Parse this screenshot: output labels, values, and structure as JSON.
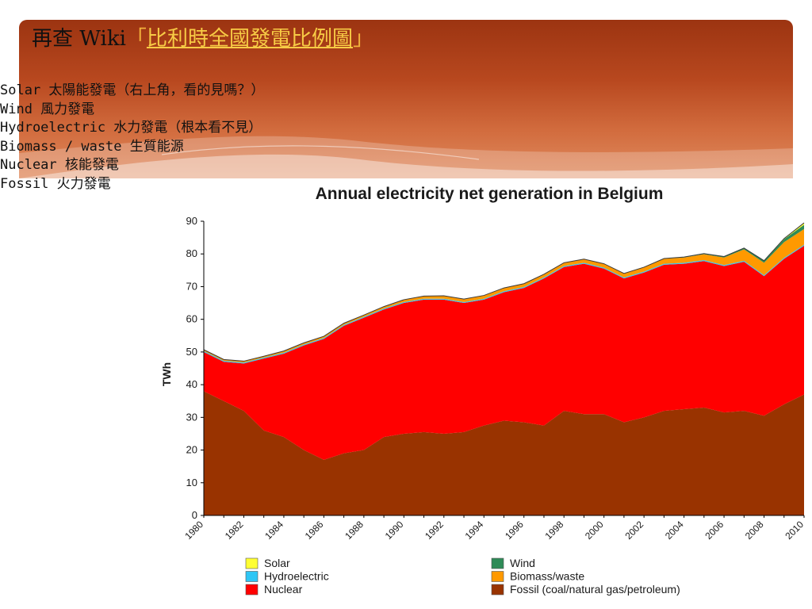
{
  "slide": {
    "title_prefix": "再查 Wiki",
    "bracket_open": "「",
    "link_text": "比利時全國發電比例圖",
    "bracket_close": "」",
    "lines": [
      "Solar 太陽能發電（右上角，看的見嗎？）",
      "Wind 風力發電",
      "Hydroelectric 水力發電（根本看不見）",
      "Biomass / waste 生質能源",
      "Nuclear 核能發電",
      "Fossil 火力發電"
    ]
  },
  "colors": {
    "banner": "#b8481f",
    "link": "#f7cb45",
    "solar": "#ffff33",
    "hydroelectric": "#2ec6f5",
    "nuclear": "#ff0000",
    "wind": "#2e8b57",
    "biomass": "#ff9900",
    "fossil": "#993300"
  },
  "chart_data": {
    "type": "area",
    "stacked": true,
    "title": "Annual electricity net generation in Belgium",
    "ylabel": "TWh",
    "xlabel": "",
    "ylim": [
      0,
      90
    ],
    "yticks": [
      0,
      10,
      20,
      30,
      40,
      50,
      60,
      70,
      80,
      90
    ],
    "xlim": [
      1980,
      2010
    ],
    "x": [
      1980,
      1981,
      1982,
      1983,
      1984,
      1985,
      1986,
      1987,
      1988,
      1989,
      1990,
      1991,
      1992,
      1993,
      1994,
      1995,
      1996,
      1997,
      1998,
      1999,
      2000,
      2001,
      2002,
      2003,
      2004,
      2005,
      2006,
      2007,
      2008,
      2009,
      2010
    ],
    "xtick_labels": [
      "1980",
      "1982",
      "1984",
      "1986",
      "1988",
      "1990",
      "1992",
      "1994",
      "1996",
      "1998",
      "2000",
      "2002",
      "2004",
      "2006",
      "2008",
      "2010"
    ],
    "series": [
      {
        "name": "Fossil (coal/natural gas/petroleum)",
        "color": "#993300",
        "values": [
          38,
          35,
          32,
          26,
          24,
          20,
          17,
          19,
          20,
          24,
          25,
          25.5,
          25,
          25.5,
          27.5,
          29,
          28.5,
          27.5,
          32,
          31,
          31,
          28.5,
          30,
          32,
          32.5,
          33,
          31.5,
          32,
          30.5,
          34,
          37
        ]
      },
      {
        "name": "Nuclear",
        "color": "#ff0000",
        "values": [
          12,
          12,
          14.5,
          22,
          25.5,
          32,
          37,
          39,
          40.5,
          39,
          40,
          40.5,
          41,
          39.5,
          38.5,
          39.3,
          41.1,
          45,
          44,
          46,
          44.5,
          44,
          44.3,
          44.7,
          44.5,
          44.8,
          44.8,
          45.6,
          42.7,
          44.5,
          45.5
        ]
      },
      {
        "name": "Hydroelectric",
        "color": "#2ec6f5",
        "values": [
          0.3,
          0.3,
          0.3,
          0.3,
          0.3,
          0.3,
          0.3,
          0.3,
          0.3,
          0.3,
          0.3,
          0.3,
          0.3,
          0.3,
          0.3,
          0.3,
          0.3,
          0.3,
          0.3,
          0.3,
          0.3,
          0.3,
          0.3,
          0.3,
          0.3,
          0.3,
          0.3,
          0.3,
          0.3,
          0.3,
          0.3
        ]
      },
      {
        "name": "Biomass/waste",
        "color": "#ff9900",
        "values": [
          0.4,
          0.4,
          0.4,
          0.4,
          0.5,
          0.5,
          0.5,
          0.5,
          0.5,
          0.6,
          0.7,
          0.8,
          0.9,
          0.9,
          1.0,
          1.0,
          1.0,
          1.0,
          1.0,
          1.1,
          1.2,
          1.2,
          1.3,
          1.5,
          1.6,
          1.8,
          2.3,
          3.5,
          3.8,
          4.8,
          4.8
        ]
      },
      {
        "name": "Wind",
        "color": "#2e8b57",
        "values": [
          0,
          0,
          0,
          0,
          0,
          0,
          0,
          0,
          0,
          0,
          0,
          0,
          0,
          0,
          0,
          0,
          0,
          0,
          0,
          0,
          0,
          0.02,
          0.05,
          0.1,
          0.15,
          0.2,
          0.3,
          0.4,
          0.6,
          0.9,
          1.3
        ]
      },
      {
        "name": "Solar",
        "color": "#ffff33",
        "values": [
          0,
          0,
          0,
          0,
          0,
          0,
          0,
          0,
          0,
          0,
          0,
          0,
          0,
          0,
          0,
          0,
          0,
          0,
          0,
          0,
          0,
          0,
          0,
          0,
          0,
          0,
          0,
          0,
          0.05,
          0.2,
          0.6
        ]
      }
    ],
    "legend": {
      "placement": "bottom",
      "entries": [
        {
          "label": "Solar",
          "color": "#ffff33"
        },
        {
          "label": "Wind",
          "color": "#2e8b57"
        },
        {
          "label": "Hydroelectric",
          "color": "#2ec6f5"
        },
        {
          "label": "Biomass/waste",
          "color": "#ff9900"
        },
        {
          "label": "Nuclear",
          "color": "#ff0000"
        },
        {
          "label": "Fossil (coal/natural gas/petroleum)",
          "color": "#993300"
        }
      ]
    }
  }
}
